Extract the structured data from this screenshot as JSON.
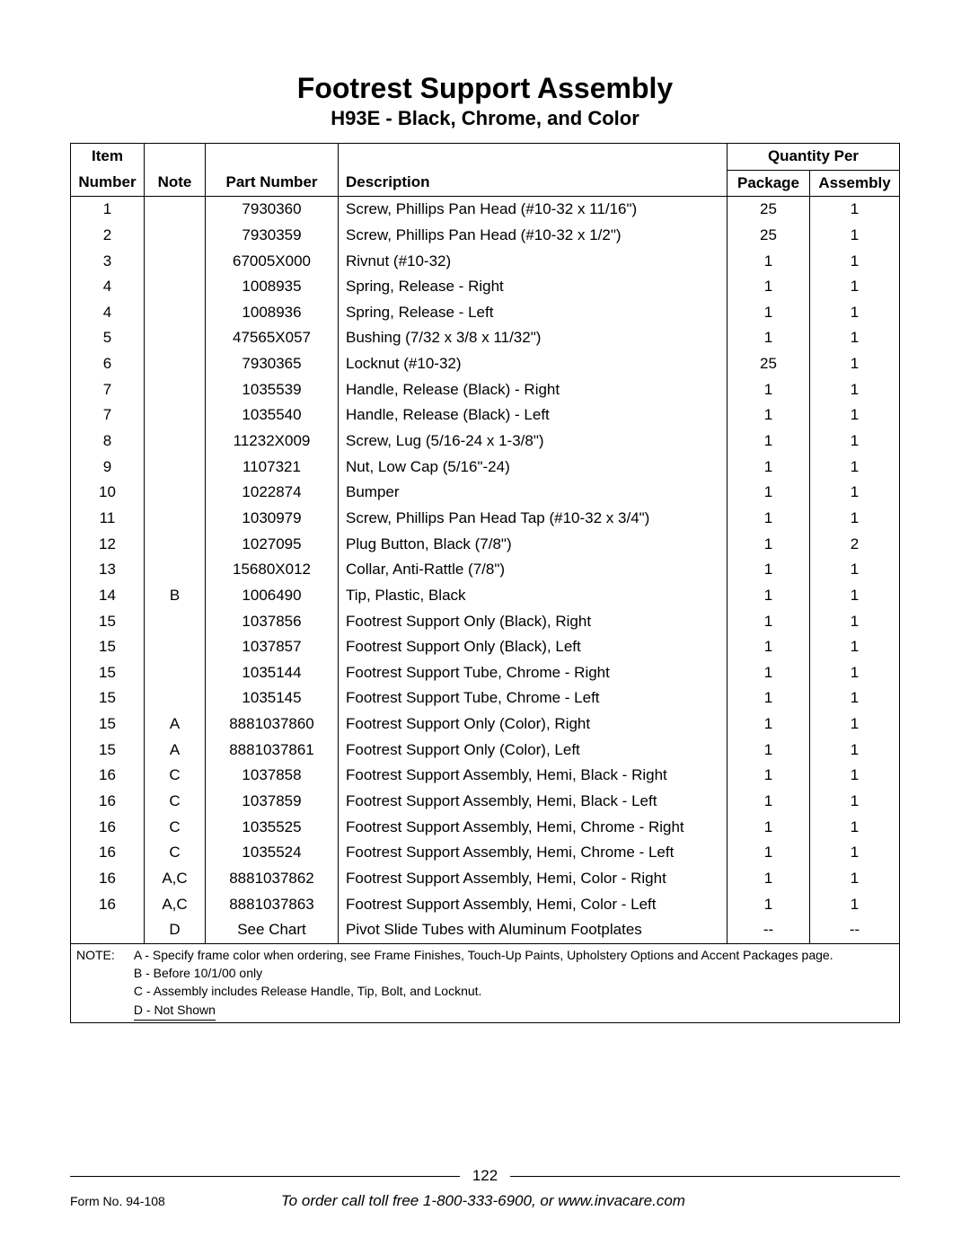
{
  "title": "Footrest Support Assembly",
  "subtitle": "H93E - Black, Chrome, and  Color",
  "headers": {
    "item_top": "Item",
    "item": "Number",
    "note": "Note",
    "part": "Part Number",
    "desc": "Description",
    "qty_per": "Quantity Per",
    "pkg": "Package",
    "asm": "Assembly"
  },
  "rows": [
    {
      "item": "1",
      "note": "",
      "part": "7930360",
      "desc": "Screw, Phillips Pan Head (#10-32 x 11/16\")",
      "pkg": "25",
      "asm": "1"
    },
    {
      "item": "2",
      "note": "",
      "part": "7930359",
      "desc": "Screw, Phillips Pan Head (#10-32 x 1/2\")",
      "pkg": "25",
      "asm": "1"
    },
    {
      "item": "3",
      "note": "",
      "part": "67005X000",
      "desc": "Rivnut (#10-32)",
      "pkg": "1",
      "asm": "1"
    },
    {
      "item": "4",
      "note": "",
      "part": "1008935",
      "desc": "Spring, Release - Right",
      "pkg": "1",
      "asm": "1"
    },
    {
      "item": "4",
      "note": "",
      "part": "1008936",
      "desc": "Spring, Release - Left",
      "pkg": "1",
      "asm": "1"
    },
    {
      "item": "5",
      "note": "",
      "part": "47565X057",
      "desc": "Bushing (7/32 x 3/8 x 11/32\")",
      "pkg": "1",
      "asm": "1"
    },
    {
      "item": "6",
      "note": "",
      "part": "7930365",
      "desc": "Locknut (#10-32)",
      "pkg": "25",
      "asm": "1"
    },
    {
      "item": "7",
      "note": "",
      "part": "1035539",
      "desc": "Handle, Release (Black) - Right",
      "pkg": "1",
      "asm": "1"
    },
    {
      "item": "7",
      "note": "",
      "part": "1035540",
      "desc": "Handle, Release (Black) - Left",
      "pkg": "1",
      "asm": "1"
    },
    {
      "item": "8",
      "note": "",
      "part": "11232X009",
      "desc": "Screw, Lug  (5/16-24 x 1-3/8\")",
      "pkg": "1",
      "asm": "1"
    },
    {
      "item": "9",
      "note": "",
      "part": "1107321",
      "desc": "Nut, Low Cap (5/16\"-24)",
      "pkg": "1",
      "asm": "1"
    },
    {
      "item": "10",
      "note": "",
      "part": "1022874",
      "desc": "Bumper",
      "pkg": "1",
      "asm": "1"
    },
    {
      "item": "11",
      "note": "",
      "part": "1030979",
      "desc": "Screw, Phillips Pan Head Tap (#10-32 x 3/4\")",
      "pkg": "1",
      "asm": "1"
    },
    {
      "item": "12",
      "note": "",
      "part": "1027095",
      "desc": "Plug Button, Black (7/8\")",
      "pkg": "1",
      "asm": "2"
    },
    {
      "item": "13",
      "note": "",
      "part": "15680X012",
      "desc": "Collar, Anti-Rattle (7/8\")",
      "pkg": "1",
      "asm": "1"
    },
    {
      "item": "14",
      "note": "B",
      "part": "1006490",
      "desc": "Tip, Plastic, Black",
      "pkg": "1",
      "asm": "1"
    },
    {
      "item": "15",
      "note": "",
      "part": "1037856",
      "desc": "Footrest Support Only (Black), Right",
      "pkg": "1",
      "asm": "1"
    },
    {
      "item": "15",
      "note": "",
      "part": "1037857",
      "desc": "Footrest Support Only (Black), Left",
      "pkg": "1",
      "asm": "1"
    },
    {
      "item": "15",
      "note": "",
      "part": "1035144",
      "desc": "Footrest Support Tube, Chrome - Right",
      "pkg": "1",
      "asm": "1"
    },
    {
      "item": "15",
      "note": "",
      "part": "1035145",
      "desc": "Footrest Support Tube, Chrome - Left",
      "pkg": "1",
      "asm": "1"
    },
    {
      "item": "15",
      "note": "A",
      "part": "8881037860",
      "desc": "Footrest Support Only (Color), Right",
      "pkg": "1",
      "asm": "1"
    },
    {
      "item": "15",
      "note": "A",
      "part": "8881037861",
      "desc": "Footrest Support Only (Color), Left",
      "pkg": "1",
      "asm": "1"
    },
    {
      "item": "16",
      "note": "C",
      "part": "1037858",
      "desc": "Footrest Support Assembly, Hemi, Black - Right",
      "pkg": "1",
      "asm": "1"
    },
    {
      "item": "16",
      "note": "C",
      "part": "1037859",
      "desc": "Footrest Support Assembly, Hemi, Black - Left",
      "pkg": "1",
      "asm": "1"
    },
    {
      "item": "16",
      "note": "C",
      "part": "1035525",
      "desc": "Footrest Support Assembly, Hemi, Chrome - Right",
      "pkg": "1",
      "asm": "1"
    },
    {
      "item": "16",
      "note": "C",
      "part": "1035524",
      "desc": "Footrest Support Assembly, Hemi, Chrome - Left",
      "pkg": "1",
      "asm": "1"
    },
    {
      "item": "16",
      "note": "A,C",
      "part": "8881037862",
      "desc": "Footrest Support Assembly, Hemi, Color - Right",
      "pkg": "1",
      "asm": "1"
    },
    {
      "item": "16",
      "note": "A,C",
      "part": "8881037863",
      "desc": "Footrest Support Assembly, Hemi, Color - Left",
      "pkg": "1",
      "asm": "1"
    },
    {
      "item": "",
      "note": "D",
      "part": "See Chart",
      "desc": "Pivot Slide Tubes with Aluminum Footplates",
      "pkg": "--",
      "asm": "--"
    }
  ],
  "notes": {
    "label": "NOTE:",
    "a": "A - Specify frame color when ordering, see Frame Finishes, Touch-Up Paints, Upholstery Options and Accent Packages page.",
    "b": "B - Before 10/1/00 only",
    "c": "C - Assembly includes Release Handle, Tip, Bolt, and Locknut.",
    "d": "D - Not Shown"
  },
  "footer": {
    "page_num": "122",
    "form_no": "Form No. 94-108",
    "order_line": "To order call toll free 1-800-333-6900, or www.invacare.com"
  }
}
